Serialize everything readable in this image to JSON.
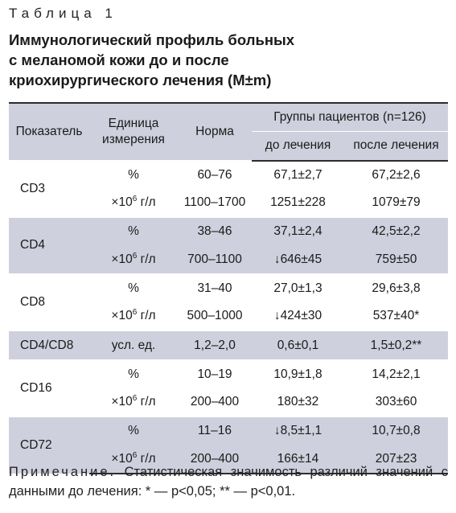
{
  "table_label": "Таблица 1",
  "caption": [
    "Иммунологический профиль больных",
    "с меланомой кожи до и после",
    "криохирургического лечения (M±m)"
  ],
  "headers": {
    "indicator": "Показатель",
    "unit_line1": "Единица",
    "unit_line2": "измерения",
    "norm": "Норма",
    "groups": "Группы пациентов (n=126)",
    "before": "до лечения",
    "after": "после лечения"
  },
  "rows": [
    {
      "indicator": "CD3",
      "unit": "%",
      "norm": "60–76",
      "before": "67,1±2,7",
      "after": "67,2±2,6"
    },
    {
      "unit_prefix": "×10",
      "unit_exp": "6",
      "unit_suffix": " г/л",
      "norm": "1100–1700",
      "before": "1251±228",
      "after": "1079±79"
    },
    {
      "indicator": "CD4",
      "unit": "%",
      "norm": "38–46",
      "before": "37,1±2,4",
      "after": "42,5±2,2"
    },
    {
      "unit_prefix": "×10",
      "unit_exp": "6",
      "unit_suffix": " г/л",
      "norm": "700–1100",
      "before": "↓646±45",
      "after": "759±50"
    },
    {
      "indicator": "CD8",
      "unit": "%",
      "norm": "31–40",
      "before": "27,0±1,3",
      "after": "29,6±3,8"
    },
    {
      "unit_prefix": "×10",
      "unit_exp": "6",
      "unit_suffix": " г/л",
      "norm": "500–1000",
      "before": "↓424±30",
      "after": "537±40*"
    },
    {
      "indicator": "CD4/CD8",
      "unit": "усл. ед.",
      "norm": "1,2–2,0",
      "before": "0,6±0,1",
      "after": "1,5±0,2**"
    },
    {
      "indicator": "CD16",
      "unit": "%",
      "norm": "10–19",
      "before": "10,9±1,8",
      "after": "14,2±2,1"
    },
    {
      "unit_prefix": "×10",
      "unit_exp": "6",
      "unit_suffix": " г/л",
      "norm": "200–400",
      "before": "180±32",
      "after": "303±60"
    },
    {
      "indicator": "CD72",
      "unit": "%",
      "norm": "11–16",
      "before": "↓8,5±1,1",
      "after": "10,7±0,8"
    },
    {
      "unit_prefix": "×10",
      "unit_exp": "6",
      "unit_suffix": " г/л",
      "norm": "200–400",
      "before": "166±14",
      "after": "207±23"
    }
  ],
  "note": {
    "label": "Примечание.",
    "text": " Статистическая значимость различий значений с данными до лечения: * — p<0,05; ** — p<0,01."
  },
  "colors": {
    "band": "#cfd0dd",
    "rule": "#2c2c2c"
  }
}
